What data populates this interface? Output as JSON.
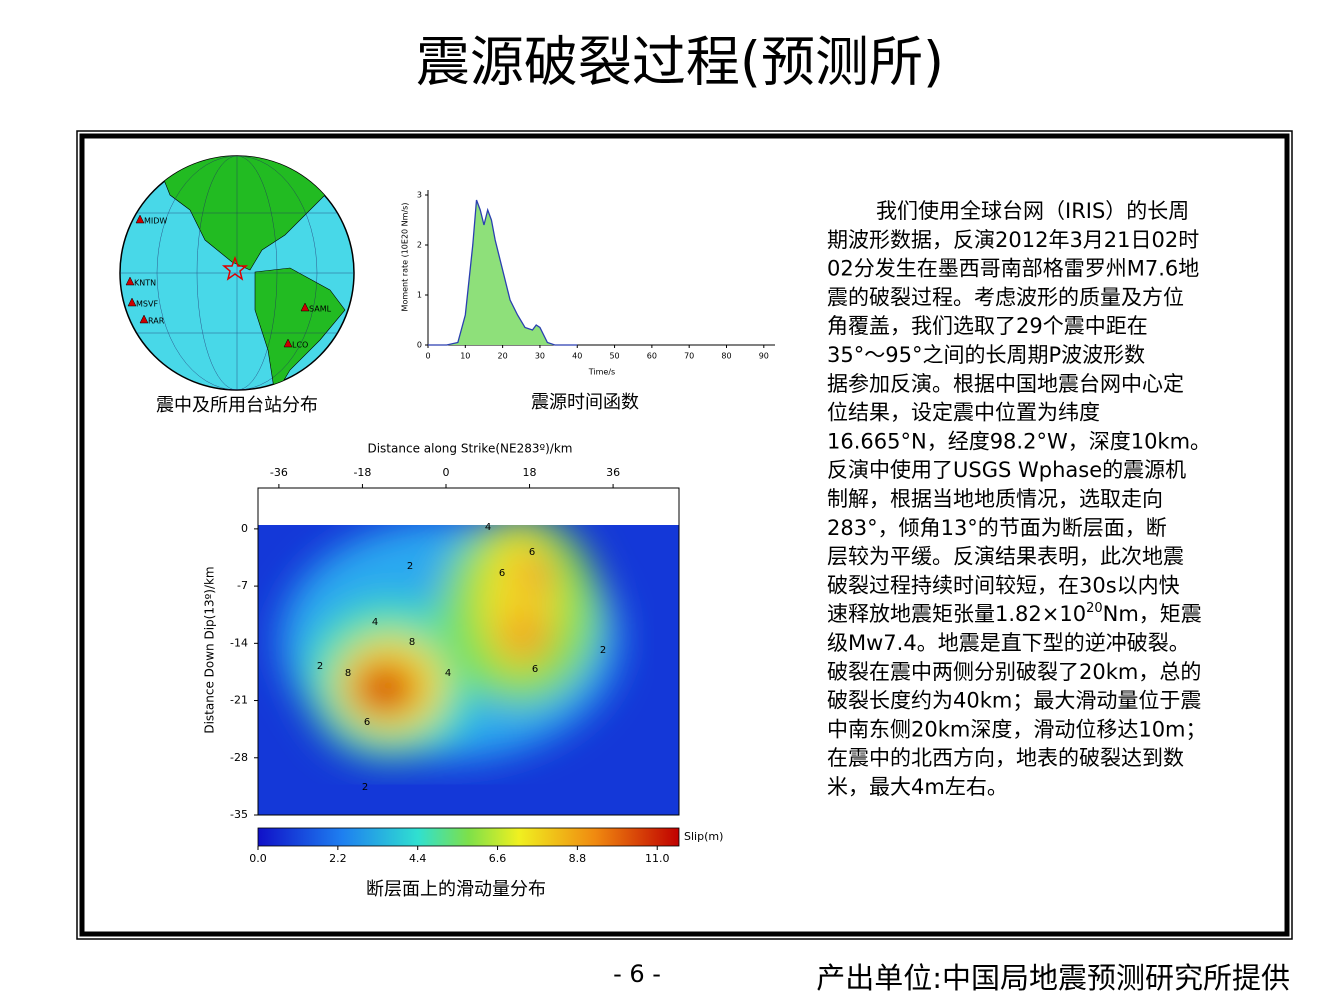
{
  "header": {
    "title": "震源破裂过程(预测所)"
  },
  "globe": {
    "caption": "震中及所用台站分布",
    "stations": [
      "MIDW",
      "KNTN",
      "MSVF",
      "RAR",
      "SAML",
      "LCO"
    ]
  },
  "stf": {
    "type": "line",
    "caption": "震源时间函数",
    "xlabel": "Time/s",
    "ylabel": "Moment rate (10E20 Nm/s)",
    "x": [
      0,
      5,
      8,
      10,
      12,
      13,
      14,
      15,
      16,
      17,
      18,
      20,
      22,
      24,
      26,
      28,
      29,
      30,
      32,
      34,
      40
    ],
    "values": [
      0,
      0,
      0.05,
      0.6,
      2.0,
      2.9,
      2.7,
      2.4,
      2.7,
      2.5,
      2.1,
      1.5,
      0.9,
      0.6,
      0.35,
      0.3,
      0.4,
      0.35,
      0.05,
      0,
      0
    ],
    "color": "#2a3fb0",
    "fill": "#8ee07a",
    "xlim": [
      0,
      93
    ],
    "xticks": [
      0,
      10,
      20,
      30,
      40,
      50,
      60,
      70,
      80,
      90
    ],
    "ylim": [
      0,
      3.1
    ],
    "yticks": [
      0,
      1,
      2,
      3
    ]
  },
  "slip": {
    "title": "Distance along Strike(NE283º)/km",
    "ylabel": "Distance Down Dip(13º)/km",
    "caption": "断层面上的滑动量分布",
    "xlim": [
      -40.5,
      50.2
    ],
    "xticks": [
      -36,
      -18,
      0,
      18,
      36
    ],
    "ylim": [
      -35,
      5
    ],
    "yticks": [
      0,
      -7,
      -14,
      -21,
      -28,
      -35
    ],
    "contour_labels": [
      "2",
      "4",
      "6",
      "8",
      "8",
      "6",
      "2",
      "4",
      "6",
      "4",
      "6",
      "2",
      "2"
    ],
    "colorbar": {
      "label": "Slip(m)",
      "clim": [
        0,
        11.6
      ],
      "ticks": [
        {
          "value": 0,
          "label": "0.0"
        },
        2.2,
        4.4,
        6.6,
        8.8,
        {
          "value": 11,
          "label": "11.0"
        }
      ]
    }
  },
  "text": {
    "lines": [
      "我们使用全球台网（IRIS）的长周",
      "期波形数据，反演2012年3月21日02时",
      "02分发生在墨西哥南部格雷罗州M7.6地",
      "震的破裂过程。考虑波形的质量及方位",
      "角覆盖，我们选取了29个震中距在",
      "35°～95°之间的长周期P波波形数",
      "据参加反演。根据中国地震台网中心定",
      "位结果，设定震中位置为纬度",
      "16.665°N，经度98.2°W，深度10km。",
      "反演中使用了USGS Wphase的震源机",
      "制解，根据当地地质情况，选取走向",
      "283°，倾角13°的节面为断层面，断",
      "层较为平缓。反演结果表明，此次地震",
      "破裂过程持续时间较短，在30s以内快",
      [
        "速释放地震矩张量1.82×10",
        "20",
        "Nm，矩震"
      ],
      "级Mw7.4。地震是直下型的逆冲破裂。",
      "破裂在震中两侧分别破裂了20km，总的",
      "破裂长度约为40km；最大滑动量位于震",
      "中南东侧20km深度，滑动位移达10m；",
      "在震中的北西方向，地表的破裂达到数",
      "米，最大4m左右。"
    ]
  },
  "footer": {
    "page": "- 6 -",
    "credit": "产出单位:中国局地震预测研究所提供"
  }
}
